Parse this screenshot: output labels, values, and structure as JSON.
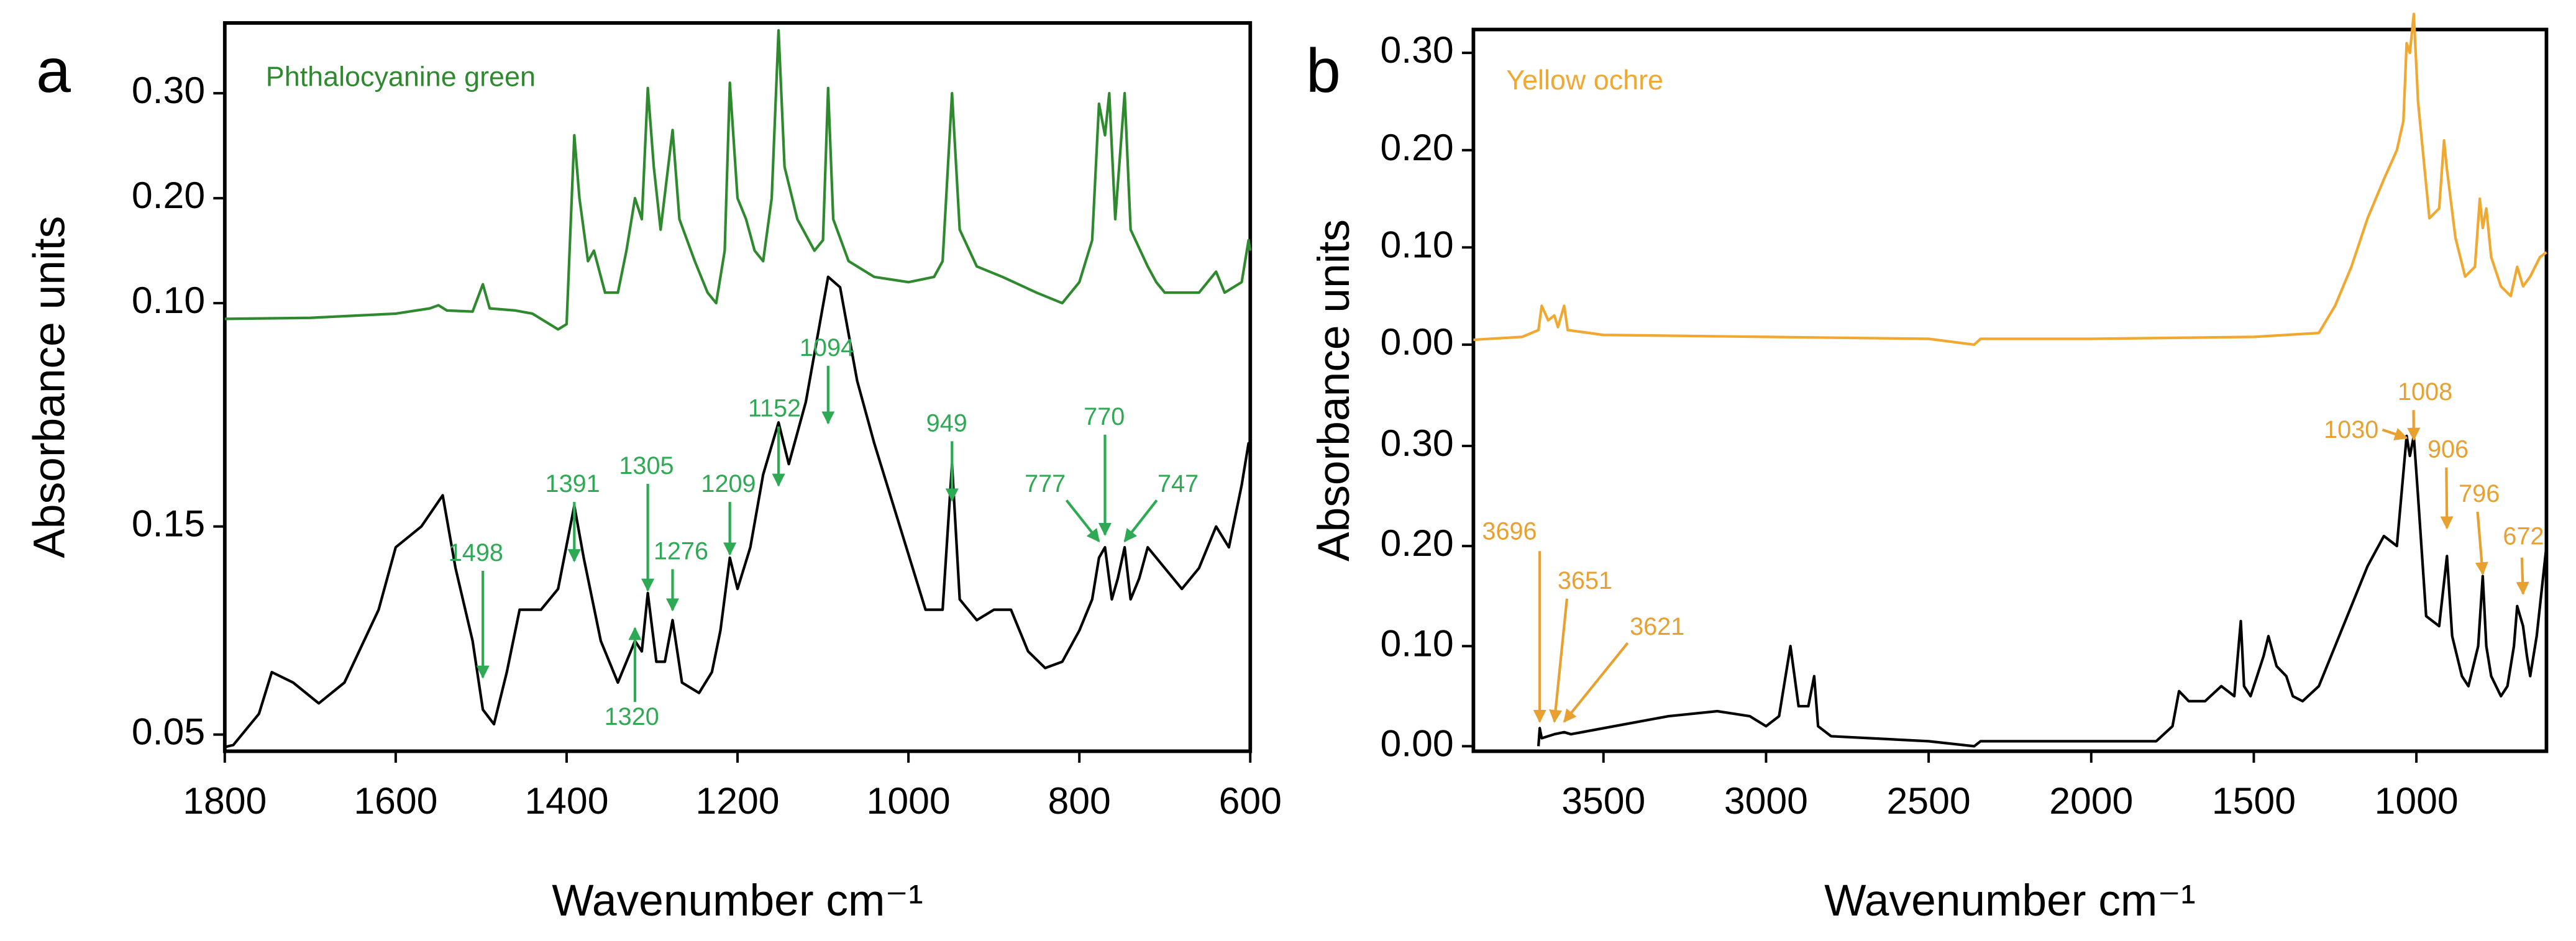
{
  "chart_data": [
    {
      "type": "line",
      "label": "a",
      "xlabel": "Wavenumber cm⁻¹",
      "ylabel": "Absorbance units",
      "xlim": [
        1800,
        600
      ],
      "xticks": [
        1800,
        1600,
        1400,
        1200,
        1000,
        800,
        600
      ],
      "ylim": [
        0.042,
        0.392
      ],
      "yticks": [
        0.05,
        0.15
      ],
      "y2lim": [
        -0.327,
        0.367
      ],
      "y2ticks": [
        {
          "value": 0.1,
          "label": "0.10"
        },
        {
          "value": 0.2,
          "label": "0.20"
        },
        {
          "value": 0.3,
          "label": "0.30"
        }
      ],
      "annotation_color": "#2eaa55",
      "peaks": [
        1498,
        1391,
        1320,
        1305,
        1276,
        1209,
        1152,
        1094,
        949,
        777,
        770,
        747
      ],
      "series": [
        {
          "name": "Phthalocyanine green",
          "color": "#2f8a2f",
          "axis": "y2",
          "x": [
            1800,
            1700,
            1600,
            1560,
            1550,
            1540,
            1510,
            1498,
            1490,
            1460,
            1440,
            1410,
            1400,
            1391,
            1385,
            1375,
            1368,
            1355,
            1340,
            1330,
            1320,
            1312,
            1305,
            1298,
            1290,
            1276,
            1268,
            1250,
            1235,
            1225,
            1215,
            1209,
            1200,
            1190,
            1180,
            1170,
            1160,
            1152,
            1145,
            1130,
            1110,
            1100,
            1094,
            1088,
            1070,
            1040,
            1000,
            970,
            960,
            949,
            940,
            920,
            890,
            850,
            820,
            800,
            785,
            777,
            770,
            765,
            758,
            747,
            740,
            720,
            710,
            700,
            660,
            640,
            630,
            610,
            602,
            600
          ],
          "values": [
            0.085,
            0.086,
            0.09,
            0.095,
            0.098,
            0.093,
            0.092,
            0.118,
            0.095,
            0.093,
            0.09,
            0.075,
            0.08,
            0.26,
            0.2,
            0.14,
            0.15,
            0.11,
            0.11,
            0.15,
            0.2,
            0.18,
            0.305,
            0.23,
            0.17,
            0.265,
            0.18,
            0.14,
            0.11,
            0.1,
            0.15,
            0.31,
            0.2,
            0.18,
            0.15,
            0.14,
            0.2,
            0.36,
            0.23,
            0.18,
            0.15,
            0.16,
            0.305,
            0.18,
            0.14,
            0.125,
            0.12,
            0.125,
            0.14,
            0.3,
            0.17,
            0.135,
            0.125,
            0.11,
            0.1,
            0.12,
            0.16,
            0.29,
            0.26,
            0.3,
            0.18,
            0.3,
            0.17,
            0.135,
            0.12,
            0.11,
            0.11,
            0.13,
            0.11,
            0.12,
            0.16,
            0.15
          ]
        },
        {
          "color": "#000000",
          "axis": "y",
          "x": [
            1800,
            1790,
            1760,
            1745,
            1720,
            1690,
            1660,
            1620,
            1600,
            1570,
            1545,
            1530,
            1510,
            1498,
            1485,
            1470,
            1455,
            1430,
            1410,
            1391,
            1380,
            1360,
            1340,
            1325,
            1320,
            1312,
            1305,
            1295,
            1285,
            1276,
            1265,
            1245,
            1230,
            1220,
            1209,
            1200,
            1185,
            1170,
            1152,
            1140,
            1120,
            1094,
            1080,
            1060,
            1040,
            1010,
            980,
            960,
            949,
            940,
            920,
            900,
            880,
            860,
            840,
            820,
            800,
            785,
            777,
            770,
            762,
            755,
            747,
            740,
            730,
            720,
            700,
            680,
            660,
            640,
            625,
            610,
            602,
            600
          ],
          "values": [
            0.044,
            0.045,
            0.06,
            0.08,
            0.075,
            0.065,
            0.075,
            0.11,
            0.14,
            0.15,
            0.165,
            0.13,
            0.095,
            0.062,
            0.055,
            0.08,
            0.11,
            0.11,
            0.12,
            0.16,
            0.135,
            0.095,
            0.075,
            0.09,
            0.095,
            0.09,
            0.118,
            0.085,
            0.085,
            0.105,
            0.075,
            0.07,
            0.08,
            0.1,
            0.135,
            0.12,
            0.14,
            0.175,
            0.2,
            0.18,
            0.21,
            0.27,
            0.265,
            0.22,
            0.19,
            0.15,
            0.11,
            0.11,
            0.18,
            0.115,
            0.105,
            0.11,
            0.11,
            0.09,
            0.082,
            0.085,
            0.1,
            0.115,
            0.135,
            0.14,
            0.115,
            0.125,
            0.14,
            0.115,
            0.125,
            0.14,
            0.13,
            0.12,
            0.13,
            0.15,
            0.14,
            0.17,
            0.19,
            0.185
          ]
        }
      ]
    },
    {
      "type": "line",
      "label": "b",
      "xlabel": "Wavenumber cm⁻¹",
      "ylabel": "Absorbance units",
      "xlim": [
        3900,
        600
      ],
      "xticks": [
        3500,
        3000,
        2500,
        2000,
        1500,
        1000
      ],
      "ylim": [
        -0.005,
        0.716
      ],
      "yticks": [
        {
          "value": 0,
          "label": "0.00"
        },
        {
          "value": 0.1,
          "label": "0.10"
        },
        {
          "value": 0.2,
          "label": "0.20"
        },
        {
          "value": 0.3,
          "label": "0.30"
        }
      ],
      "y2lim": [
        -0.418,
        0.324
      ],
      "y2ticks": [
        {
          "value": 0,
          "label": "0.00"
        },
        {
          "value": 0.1,
          "label": "0.10"
        },
        {
          "value": 0.2,
          "label": "0.20"
        },
        {
          "value": 0.3,
          "label": "0.30"
        }
      ],
      "annotation_color": "#e8a030",
      "peaks": [
        3696,
        3651,
        3621,
        1030,
        1008,
        906,
        796,
        672
      ],
      "series": [
        {
          "name": "Yellow ochre",
          "color": "#f0a830",
          "axis": "y2",
          "x": [
            3900,
            3750,
            3700,
            3690,
            3670,
            3651,
            3640,
            3621,
            3610,
            3500,
            3000,
            2500,
            2360,
            2340,
            2000,
            1500,
            1300,
            1250,
            1200,
            1150,
            1100,
            1060,
            1040,
            1030,
            1020,
            1008,
            995,
            960,
            930,
            915,
            906,
            880,
            850,
            820,
            805,
            796,
            785,
            770,
            740,
            710,
            690,
            672,
            650,
            620,
            600
          ],
          "values": [
            0.005,
            0.008,
            0.015,
            0.04,
            0.025,
            0.03,
            0.018,
            0.04,
            0.015,
            0.01,
            0.008,
            0.006,
            0,
            0.006,
            0.006,
            0.008,
            0.012,
            0.04,
            0.08,
            0.13,
            0.17,
            0.2,
            0.23,
            0.31,
            0.3,
            0.34,
            0.25,
            0.13,
            0.14,
            0.21,
            0.18,
            0.11,
            0.07,
            0.08,
            0.15,
            0.12,
            0.14,
            0.09,
            0.06,
            0.05,
            0.08,
            0.06,
            0.07,
            0.09,
            0.095
          ]
        },
        {
          "color": "#000000",
          "axis": "y",
          "x": [
            3700,
            3696,
            3690,
            3651,
            3621,
            3600,
            3500,
            3300,
            3150,
            3050,
            3000,
            2960,
            2925,
            2900,
            2870,
            2852,
            2840,
            2800,
            2500,
            2360,
            2340,
            2000,
            1800,
            1750,
            1730,
            1700,
            1650,
            1600,
            1560,
            1540,
            1530,
            1510,
            1470,
            1455,
            1430,
            1400,
            1380,
            1350,
            1300,
            1250,
            1200,
            1150,
            1100,
            1060,
            1030,
            1020,
            1008,
            995,
            970,
            930,
            906,
            890,
            860,
            840,
            810,
            796,
            785,
            770,
            740,
            720,
            700,
            690,
            672,
            660,
            650,
            630,
            610,
            600
          ],
          "values": [
            0,
            0.018,
            0.008,
            0.012,
            0.014,
            0.012,
            0.018,
            0.03,
            0.035,
            0.03,
            0.02,
            0.03,
            0.1,
            0.04,
            0.04,
            0.07,
            0.02,
            0.01,
            0.005,
            0,
            0.005,
            0.005,
            0.005,
            0.02,
            0.055,
            0.045,
            0.045,
            0.06,
            0.05,
            0.125,
            0.06,
            0.05,
            0.09,
            0.11,
            0.08,
            0.07,
            0.05,
            0.045,
            0.06,
            0.1,
            0.14,
            0.18,
            0.21,
            0.2,
            0.31,
            0.29,
            0.31,
            0.25,
            0.13,
            0.12,
            0.19,
            0.11,
            0.07,
            0.06,
            0.1,
            0.17,
            0.1,
            0.07,
            0.05,
            0.06,
            0.1,
            0.14,
            0.12,
            0.09,
            0.07,
            0.11,
            0.17,
            0.2
          ]
        }
      ]
    }
  ]
}
